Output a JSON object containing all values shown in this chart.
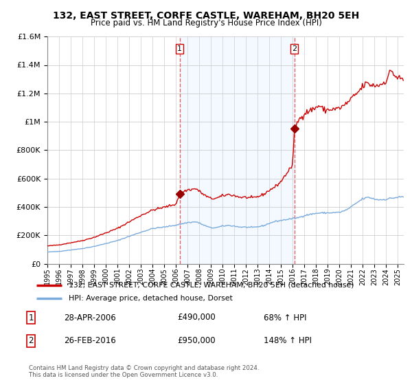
{
  "title": "132, EAST STREET, CORFE CASTLE, WAREHAM, BH20 5EH",
  "subtitle": "Price paid vs. HM Land Registry's House Price Index (HPI)",
  "legend_line1": "132, EAST STREET, CORFE CASTLE, WAREHAM, BH20 5EH (detached house)",
  "legend_line2": "HPI: Average price, detached house, Dorset",
  "footnote": "Contains HM Land Registry data © Crown copyright and database right 2024.\nThis data is licensed under the Open Government Licence v3.0.",
  "purchase1_label": "1",
  "purchase1_date": "28-APR-2006",
  "purchase1_price": "£490,000",
  "purchase1_hpi": "68% ↑ HPI",
  "purchase1_year": 2006.32,
  "purchase1_value": 490000,
  "purchase2_label": "2",
  "purchase2_date": "26-FEB-2016",
  "purchase2_price": "£950,000",
  "purchase2_hpi": "148% ↑ HPI",
  "purchase2_year": 2016.15,
  "purchase2_value": 950000,
  "property_color": "#cc0000",
  "hpi_color": "#7aabdc",
  "vline_color": "#dd6666",
  "shade_color": "#ddeeff",
  "marker_color": "#990000",
  "ylim_min": 0,
  "ylim_max": 1600000,
  "xlim_min": 1995.0,
  "xlim_max": 2025.5,
  "background_color": "#f0f5fa"
}
